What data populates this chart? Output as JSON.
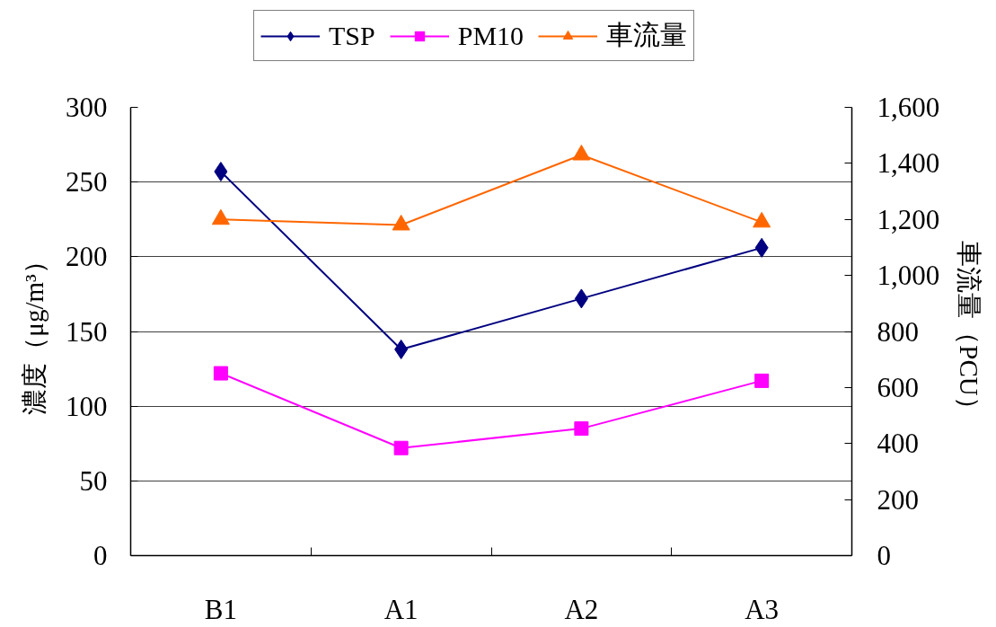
{
  "chart_data": {
    "type": "line",
    "ylabel": "濃度（μg/m³）",
    "y2label": "車流量（PCU）",
    "categories": [
      "B1",
      "A1",
      "A2",
      "A3"
    ],
    "series": [
      {
        "name": "TSP",
        "color": "#000080",
        "marker": "diamond",
        "values": [
          257,
          138,
          172,
          206
        ]
      },
      {
        "name": "PM10",
        "color": "#ff00ff",
        "marker": "square",
        "values": [
          122,
          72,
          85,
          117
        ]
      },
      {
        "name": "車流量",
        "color": "#ff6600",
        "marker": "triangle",
        "axis": "y2",
        "values": [
          1200,
          1180,
          1430,
          1190
        ]
      }
    ],
    "ylim": [
      0,
      300
    ],
    "yticks": [
      0,
      50,
      100,
      150,
      200,
      250,
      300
    ],
    "y2lim": [
      0,
      1600
    ],
    "y2ticks": [
      0,
      200,
      400,
      600,
      800,
      {
        "value": 1000,
        "label": "1,000"
      },
      {
        "value": 1200,
        "label": "1,200"
      },
      {
        "value": 1400,
        "label": "1,400"
      },
      {
        "value": 1600,
        "label": "1,600"
      }
    ],
    "grid": "y",
    "legend": "top",
    "line_style": "solid"
  }
}
